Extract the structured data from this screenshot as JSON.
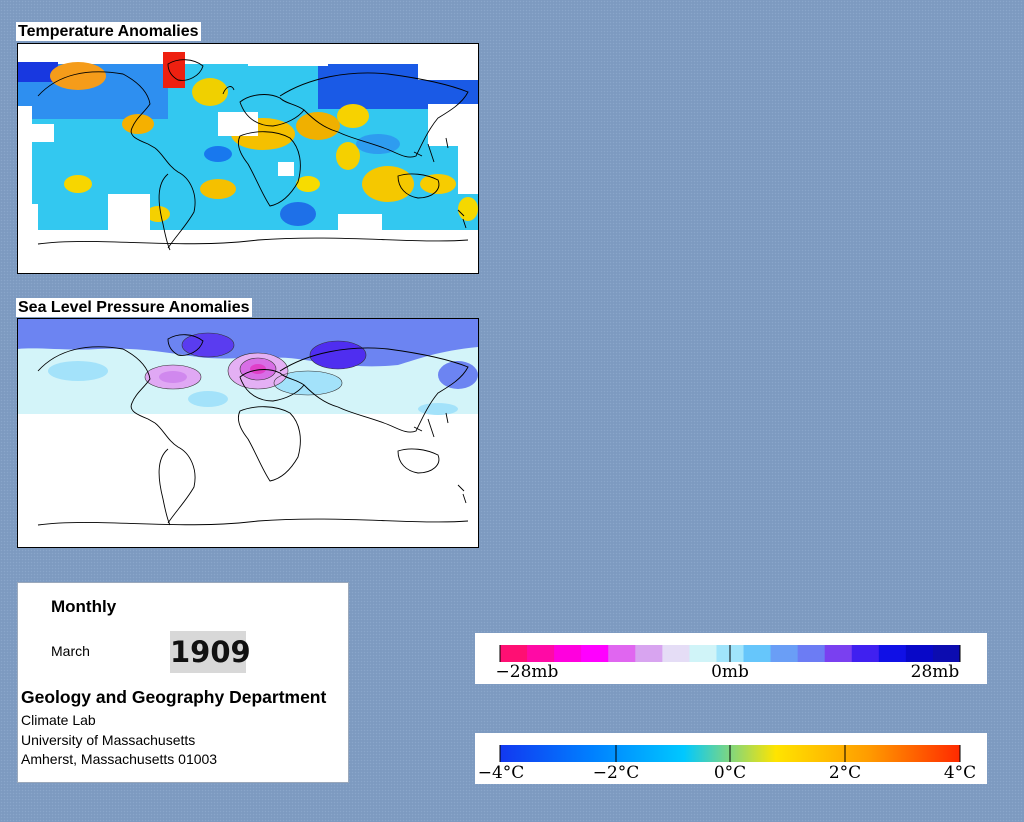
{
  "temperature_title": "Temperature Anomalies",
  "pressure_title": "Sea Level Pressure Anomalies",
  "info": {
    "period": "Monthly",
    "month": "March",
    "year": "1909",
    "department": "Geology and Geography Department",
    "lines": [
      "Climate Lab",
      "University of Massachusetts",
      "Amherst, Massachusetts 01003"
    ]
  },
  "pressure_legend": {
    "labels": [
      "−28mb",
      "0mb",
      "28mb"
    ],
    "colors": [
      "#ff0f73",
      "#ff0aa5",
      "#ff00de",
      "#ff00ff",
      "#e066f0",
      "#d8a4f0",
      "#e5ddf6",
      "#d0f4f8",
      "#a0e4fb",
      "#66c6fb",
      "#6a9ef6",
      "#6c7cf4",
      "#7a40f0",
      "#4020f0",
      "#1010e6",
      "#0808c8",
      "#0c0cb0"
    ]
  },
  "temperature_legend": {
    "labels": [
      "−4°C",
      "−2°C",
      "0°C",
      "2°C",
      "4°C"
    ],
    "colors": [
      "#1238f0",
      "#0080ff",
      "#00c8ff",
      "#ffe400",
      "#ff9c00",
      "#ff2a00"
    ]
  }
}
